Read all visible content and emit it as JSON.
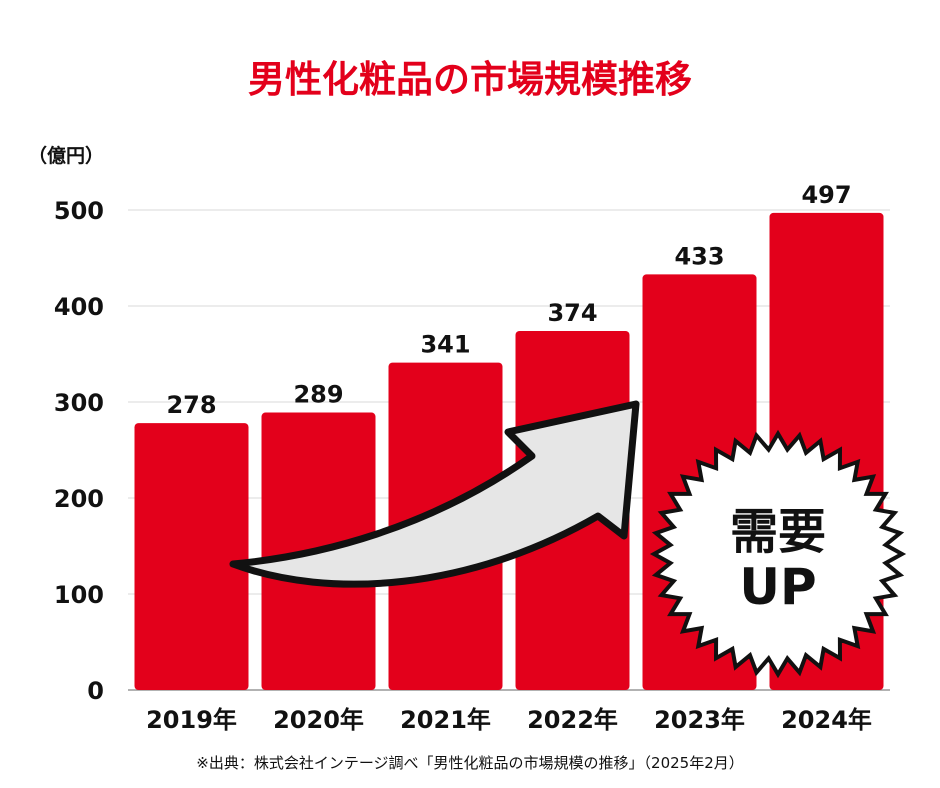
{
  "chart_data": {
    "type": "bar",
    "title": "男性化粧品の市場規模推移",
    "unit_label": "（億円）",
    "categories": [
      "2019年",
      "2020年",
      "2021年",
      "2022年",
      "2023年",
      "2024年"
    ],
    "values": [
      278,
      289,
      341,
      374,
      433,
      497
    ],
    "yticks": [
      "0",
      "100",
      "200",
      "300",
      "400",
      "500"
    ],
    "ylim": [
      0,
      500
    ],
    "grid": true,
    "bar_color": "#e3001b",
    "badge_line1": "需要",
    "badge_line2": "UP",
    "source": "※出典：株式会社インテージ調べ「男性化粧品の市場規模の推移」（2025年2月）"
  }
}
